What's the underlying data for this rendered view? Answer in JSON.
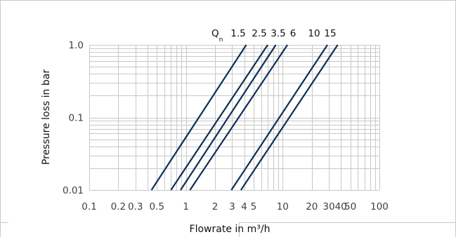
{
  "chart_data": {
    "type": "line",
    "title": "",
    "xlabel": "Flowrate in m³/h",
    "ylabel": "Pressure loss in bar",
    "x_scale": "log",
    "y_scale": "log",
    "xlim": [
      0.1,
      100
    ],
    "ylim": [
      0.01,
      1.0
    ],
    "grid": true,
    "legend_prefix": "Q",
    "legend_prefix_subscript": "n",
    "x_ticks": [
      {
        "value": 0.1,
        "label": "0.1"
      },
      {
        "value": 0.2,
        "label": "0.2"
      },
      {
        "value": 0.3,
        "label": "0.3"
      },
      {
        "value": 0.5,
        "label": "0.5"
      },
      {
        "value": 1,
        "label": "1"
      },
      {
        "value": 2,
        "label": "2"
      },
      {
        "value": 3,
        "label": "3"
      },
      {
        "value": 4,
        "label": "4"
      },
      {
        "value": 5,
        "label": "5"
      },
      {
        "value": 10,
        "label": "10"
      },
      {
        "value": 20,
        "label": "20"
      },
      {
        "value": 30,
        "label": "30"
      },
      {
        "value": 40,
        "label": "40"
      },
      {
        "value": 50,
        "label": "50"
      },
      {
        "value": 100,
        "label": "100"
      }
    ],
    "y_ticks": [
      {
        "value": 1.0,
        "label": "1.0"
      },
      {
        "value": 0.1,
        "label": "0.1"
      },
      {
        "value": 0.01,
        "label": "0.01"
      }
    ],
    "series": [
      {
        "name": "1.5",
        "points": [
          [
            0.44,
            0.01
          ],
          [
            4.2,
            1.0
          ]
        ]
      },
      {
        "name": "2.5",
        "points": [
          [
            0.7,
            0.01
          ],
          [
            7.0,
            1.0
          ]
        ]
      },
      {
        "name": "3.5",
        "points": [
          [
            0.88,
            0.01
          ],
          [
            8.5,
            1.0
          ]
        ]
      },
      {
        "name": "6",
        "points": [
          [
            1.1,
            0.01
          ],
          [
            11.2,
            1.0
          ]
        ]
      },
      {
        "name": "10",
        "points": [
          [
            2.95,
            0.01
          ],
          [
            29,
            1.0
          ]
        ]
      },
      {
        "name": "15",
        "points": [
          [
            3.7,
            0.01
          ],
          [
            37,
            1.0
          ]
        ]
      }
    ],
    "colors": {
      "series": "#0d2f57",
      "grid": "#c8c8c8",
      "frame": "#c8c8c8"
    }
  }
}
